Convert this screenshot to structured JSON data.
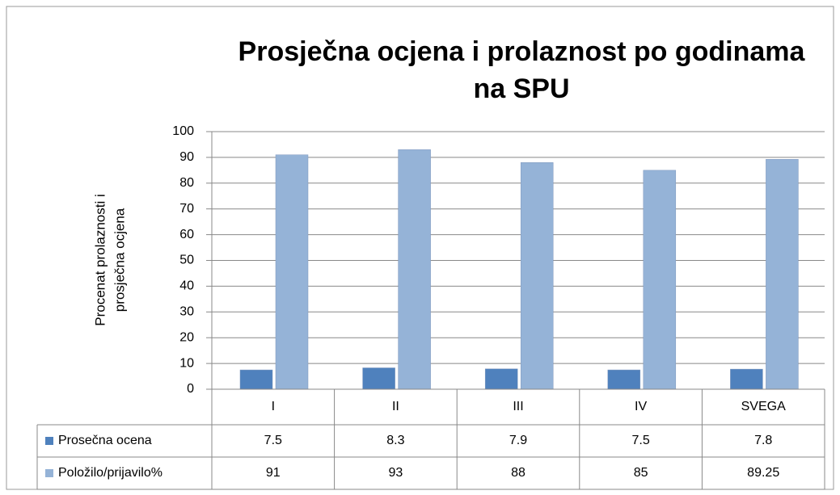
{
  "chart_data": {
    "type": "bar",
    "title": [
      "Prosječna ocjena i prolaznost po godinama",
      "na SPU"
    ],
    "y_label": [
      "Procenat prolaznosti i",
      "prosječna ocjena"
    ],
    "categories": [
      "I",
      "II",
      "III",
      "IV",
      "SVEGA"
    ],
    "series": [
      {
        "name": "Prosečna ocena",
        "color": "#4f81bd",
        "values": [
          7.5,
          8.3,
          7.9,
          7.5,
          7.8
        ]
      },
      {
        "name": "Položilo/prijavilo%",
        "color": "#95b3d7",
        "values": [
          91,
          93,
          88,
          85,
          89.25
        ]
      }
    ],
    "ylim": [
      0,
      100
    ],
    "yticks": [
      0,
      10,
      20,
      30,
      40,
      50,
      60,
      70,
      80,
      90,
      100
    ],
    "grid": true,
    "data_table": true
  }
}
